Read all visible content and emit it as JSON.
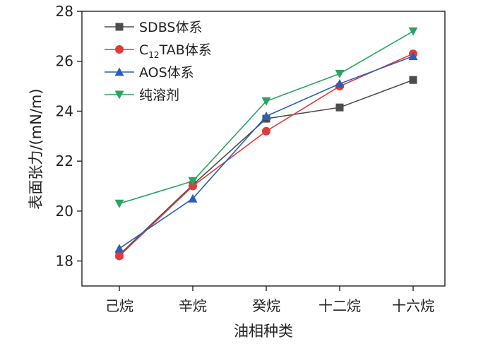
{
  "chart_data": {
    "type": "line",
    "title": "",
    "xlabel": "油相种类",
    "ylabel": "表面张力/(mN/m)",
    "categories": [
      "己烷",
      "辛烷",
      "癸烷",
      "十二烷",
      "十六烷"
    ],
    "ylim": [
      17,
      28
    ],
    "yticks": [
      "18",
      "20",
      "22",
      "24",
      "26",
      "28"
    ],
    "grid": false,
    "legend_position": "top-left",
    "series": [
      {
        "name": "SDBS体系",
        "name_parts": [
          "SDBS体系"
        ],
        "marker": "square",
        "color": "#4d4d4d",
        "values": [
          18.25,
          21.05,
          23.7,
          24.15,
          25.25
        ]
      },
      {
        "name": "C12TAB体系",
        "name_parts": [
          "C",
          "12",
          "TAB体系"
        ],
        "marker": "circle",
        "color": "#e03a3a",
        "values": [
          18.2,
          21.0,
          23.2,
          25.0,
          26.3
        ]
      },
      {
        "name": "AOS体系",
        "name_parts": [
          "AOS体系"
        ],
        "marker": "triangle-up",
        "color": "#2b5fb5",
        "values": [
          18.5,
          20.5,
          23.8,
          25.1,
          26.2
        ]
      },
      {
        "name": "纯溶剂",
        "name_parts": [
          "纯溶剂"
        ],
        "marker": "triangle-down",
        "color": "#2aa462",
        "values": [
          20.3,
          21.2,
          24.4,
          25.5,
          27.2
        ]
      }
    ]
  }
}
